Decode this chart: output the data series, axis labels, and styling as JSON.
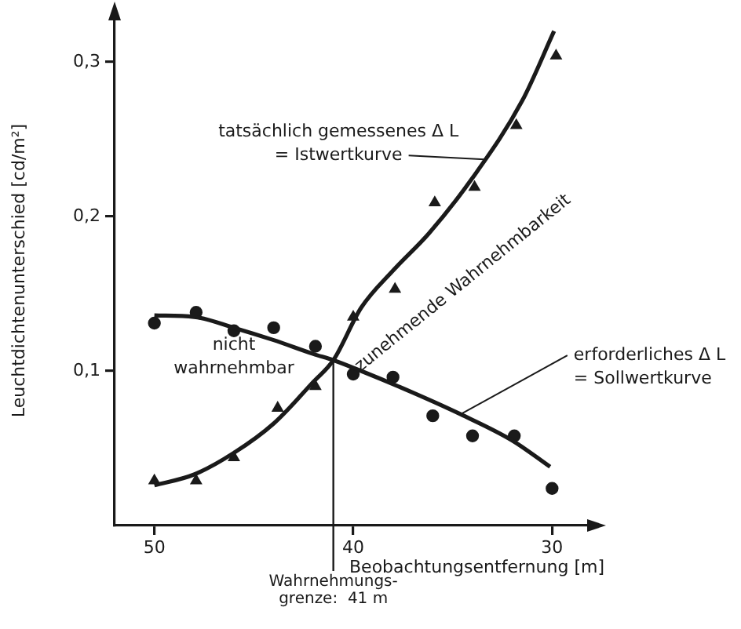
{
  "chart_data": {
    "type": "scatter",
    "xlabel": "Beobachtungsentfernung [m]",
    "ylabel": "Leuchtdichtenunterschied [cd/m²]",
    "xlim": [
      52,
      28
    ],
    "xticks": [
      50,
      40,
      30
    ],
    "ylim": [
      0,
      0.33
    ],
    "yticks": [
      {
        "value": 0.1,
        "label": "0,1"
      },
      {
        "value": 0.2,
        "label": "0,2"
      },
      {
        "value": 0.3,
        "label": "0,3"
      }
    ],
    "grid": false,
    "legend": false,
    "series": [
      {
        "type": "line",
        "color": "#1a1a1a",
        "marker": "none",
        "x": [
          50,
          48,
          46,
          44,
          42,
          41,
          39.6,
          38,
          36.2,
          34,
          31.5,
          29.9
        ],
        "values": [
          0.026,
          0.033,
          0.047,
          0.066,
          0.093,
          0.107,
          0.141,
          0.165,
          0.189,
          0.225,
          0.275,
          0.32
        ]
      },
      {
        "type": "line",
        "color": "#1a1a1a",
        "marker": "none",
        "x": [
          50,
          48,
          46,
          44,
          42,
          41,
          39.6,
          37,
          34.6,
          32,
          30.1
        ],
        "values": [
          0.136,
          0.135,
          0.128,
          0.12,
          0.111,
          0.107,
          0.1,
          0.086,
          0.072,
          0.055,
          0.038
        ]
      },
      {
        "type": "scatter",
        "color": "#1a1a1a",
        "marker": "triangle",
        "x": [
          50,
          47.9,
          46,
          43.8,
          41.9,
          40,
          37.9,
          35.9,
          33.9,
          31.8,
          29.8
        ],
        "values": [
          0.029,
          0.029,
          0.044,
          0.076,
          0.09,
          0.135,
          0.153,
          0.209,
          0.219,
          0.259,
          0.304
        ]
      },
      {
        "type": "scatter",
        "color": "#1a1a1a",
        "marker": "circle",
        "x": [
          50,
          47.9,
          46,
          44,
          41.9,
          40,
          38,
          36,
          34,
          31.9,
          30
        ],
        "values": [
          0.131,
          0.138,
          0.126,
          0.128,
          0.116,
          0.098,
          0.096,
          0.071,
          0.058,
          0.058,
          0.024
        ]
      }
    ],
    "ref_lines": [
      {
        "axis": "x",
        "value": 41,
        "label": "Wahrnehmungs-\ngrenze:  41 m"
      }
    ],
    "annotations": [
      {
        "text": "tatsächlich gemessenes Δ L\n= Istwertkurve",
        "x": 33.4,
        "y": 0.237
      },
      {
        "text": "erforderliches Δ L\n= Sollwertkurve",
        "x": 34.6,
        "y": 0.072
      },
      "nicht\nwahrnehmbar",
      "zunehmende Wahrnehmbarkeit"
    ]
  }
}
